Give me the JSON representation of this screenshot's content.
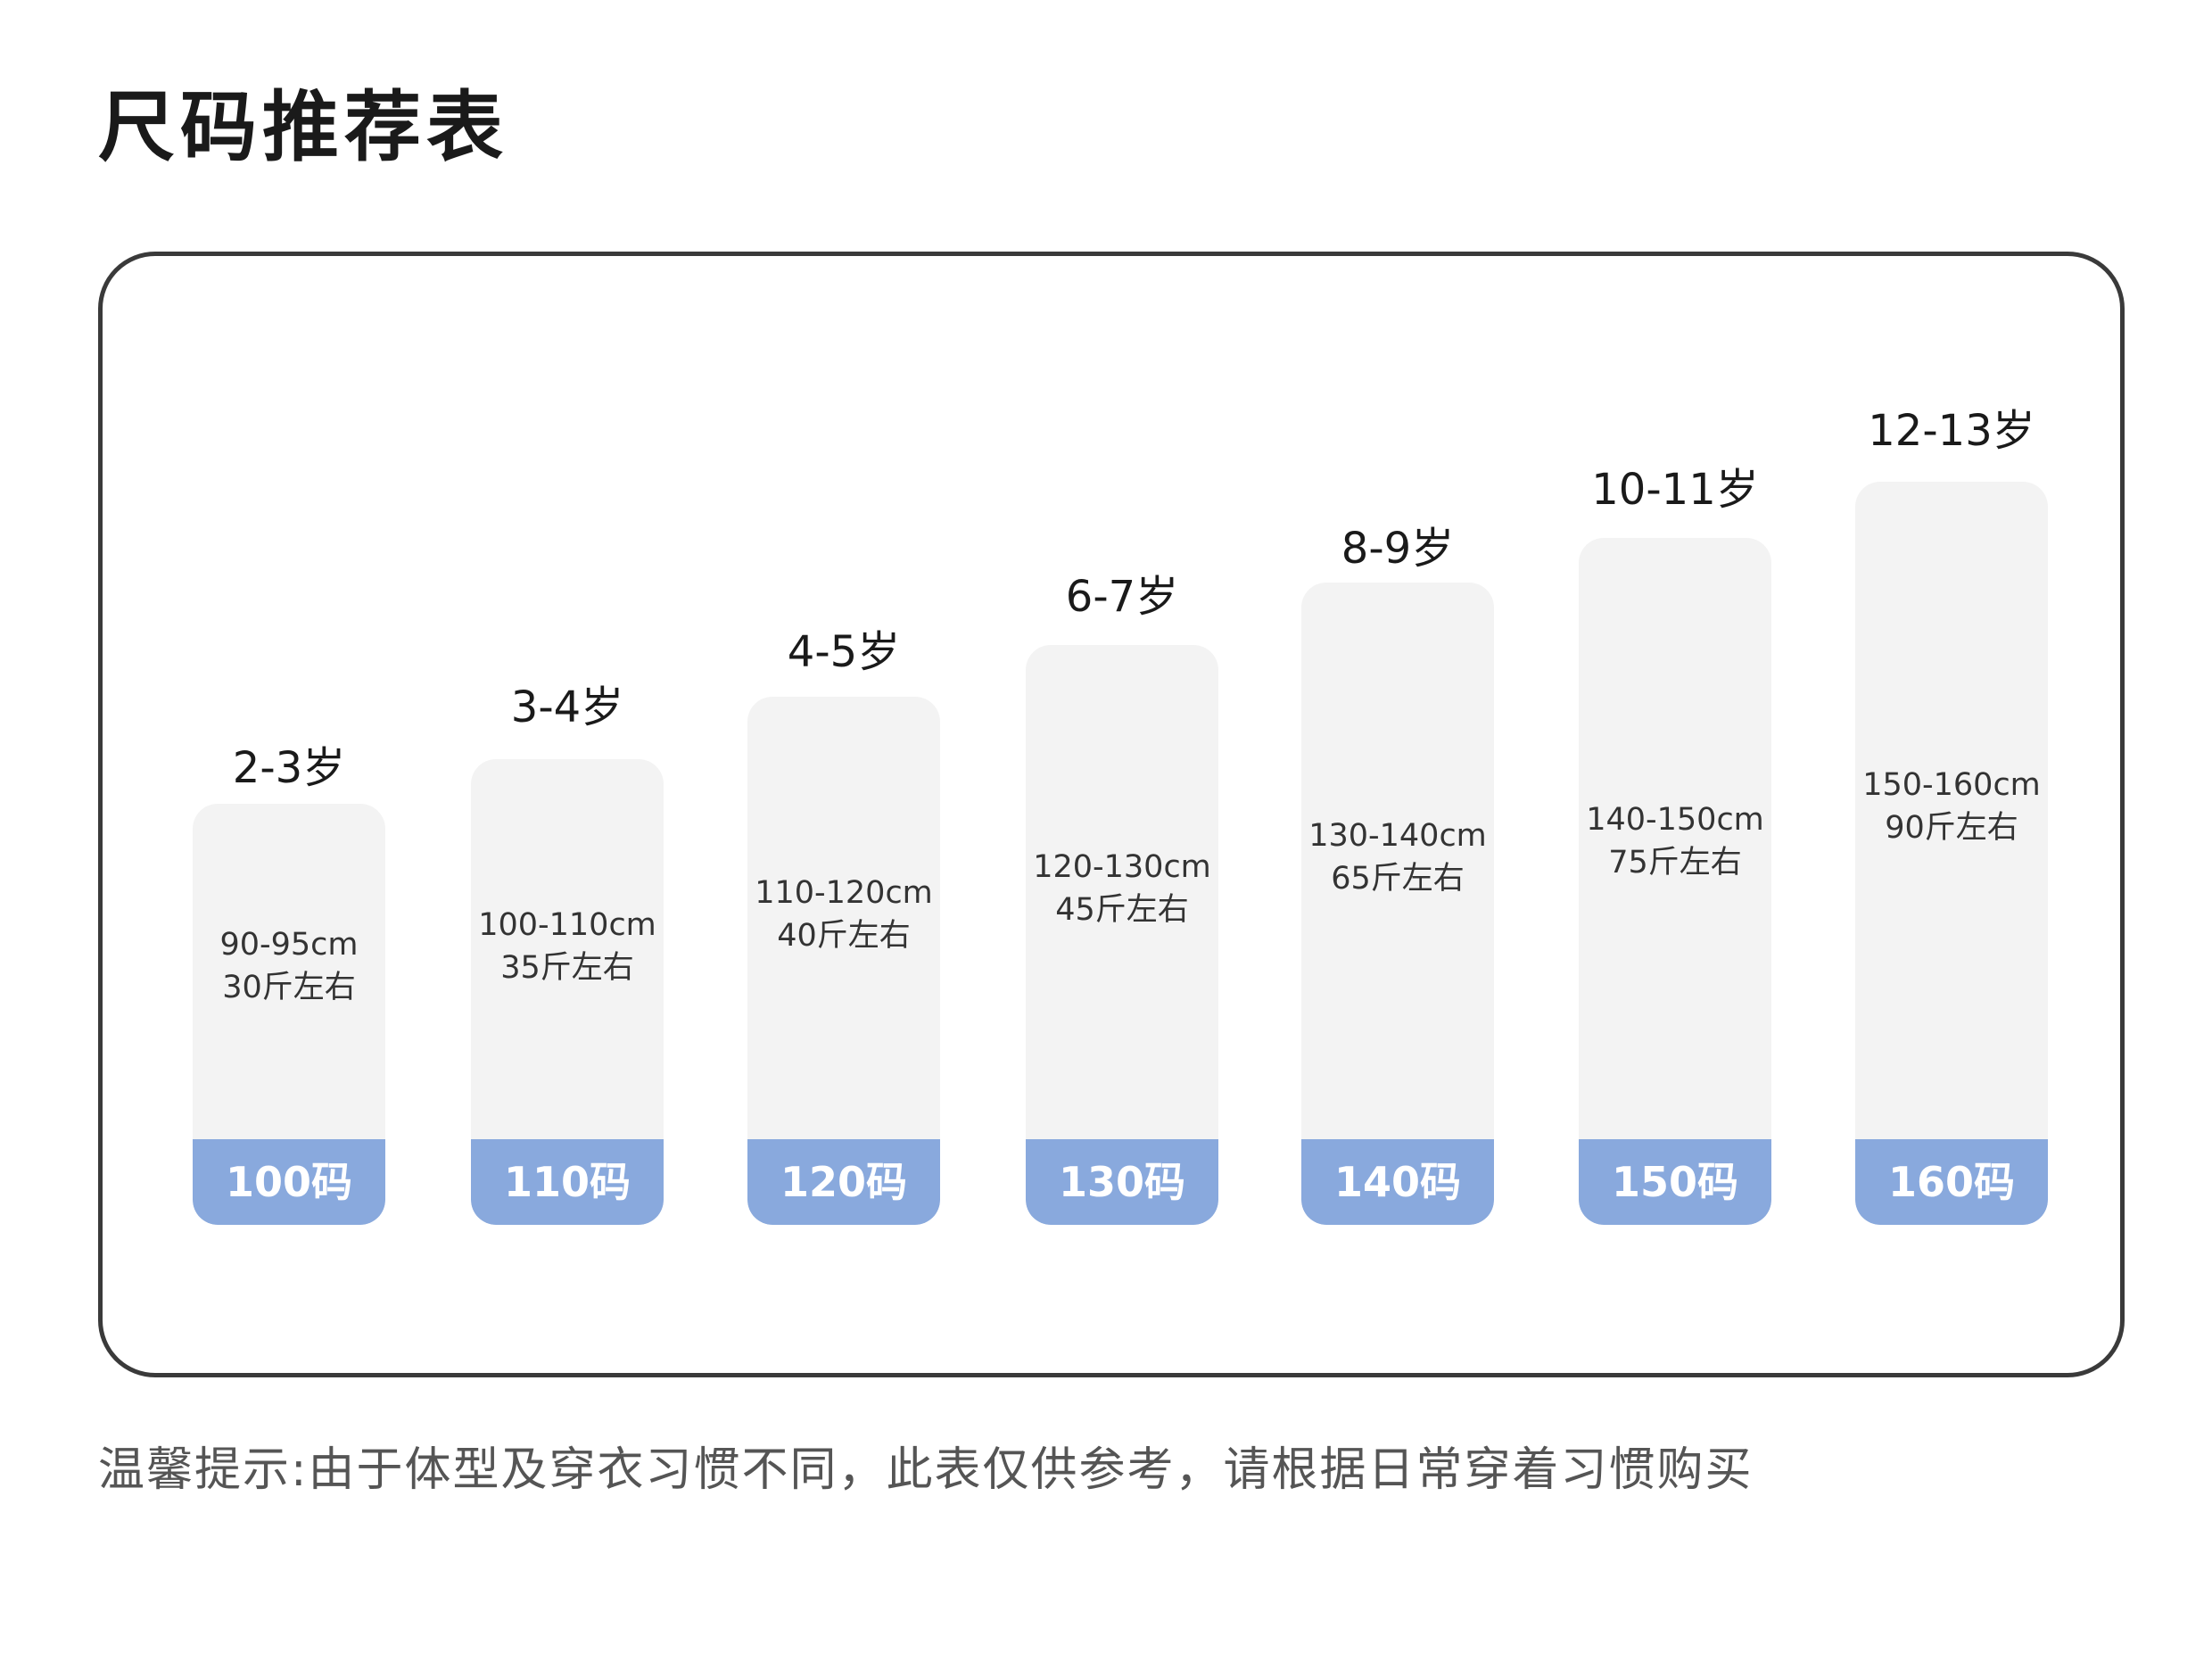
{
  "title": "尺码推荐表",
  "sizes": [
    {
      "age": "2-3岁",
      "height": "90-95cm",
      "weight": "30斤左右",
      "size": "100码"
    },
    {
      "age": "3-4岁",
      "height": "100-110cm",
      "weight": "35斤左右",
      "size": "110码"
    },
    {
      "age": "4-5岁",
      "height": "110-120cm",
      "weight": "40斤左右",
      "size": "120码"
    },
    {
      "age": "6-7岁",
      "height": "120-130cm",
      "weight": "45斤左右",
      "size": "130码"
    },
    {
      "age": "8-9岁",
      "height": "130-140cm",
      "weight": "65斤左右",
      "size": "140码"
    },
    {
      "age": "10-11岁",
      "height": "140-150cm",
      "weight": "75斤左右",
      "size": "150码"
    },
    {
      "age": "12-13岁",
      "height": "150-160cm",
      "weight": "90斤左右",
      "size": "160码"
    }
  ],
  "note": "温馨提示:由于体型及穿衣习惯不同，此表仅供参考，请根据日常穿着习惯购买",
  "colors": {
    "badge": "#89a9dd",
    "card": "#f3f3f3",
    "border": "#3a3a3a"
  }
}
